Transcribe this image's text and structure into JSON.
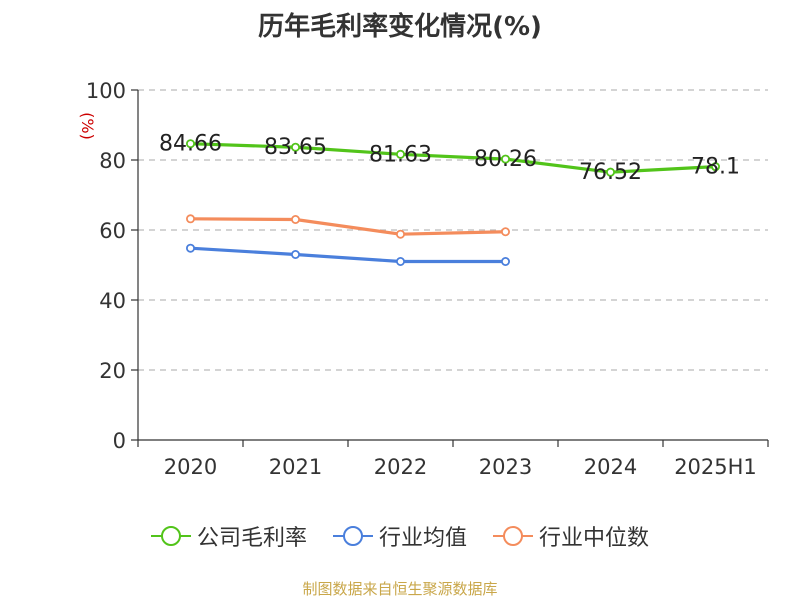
{
  "chart_data": {
    "type": "line",
    "title": "历年毛利率变化情况(%)",
    "ylabel": "(%)",
    "categories": [
      "2020",
      "2021",
      "2022",
      "2023",
      "2024",
      "2025H1"
    ],
    "ylim": [
      0,
      100
    ],
    "yticks": [
      0,
      20,
      40,
      60,
      80,
      100
    ],
    "grid": true,
    "legend_position": "bottom",
    "series": [
      {
        "name": "公司毛利率",
        "color": "#52c41a",
        "values": [
          84.66,
          83.65,
          81.63,
          80.26,
          76.52,
          78.1
        ],
        "labels": [
          "84.66",
          "83.65",
          "81.63",
          "80.26",
          "76.52",
          "78.1"
        ]
      },
      {
        "name": "行业均值",
        "color": "#4a7fdc",
        "values": [
          54.8,
          53.0,
          51.0,
          51.0,
          null,
          null
        ]
      },
      {
        "name": "行业中位数",
        "color": "#f48c5c",
        "values": [
          63.2,
          63.0,
          58.8,
          59.5,
          null,
          null
        ]
      }
    ]
  },
  "source_text": "制图数据来自恒生聚源数据库"
}
